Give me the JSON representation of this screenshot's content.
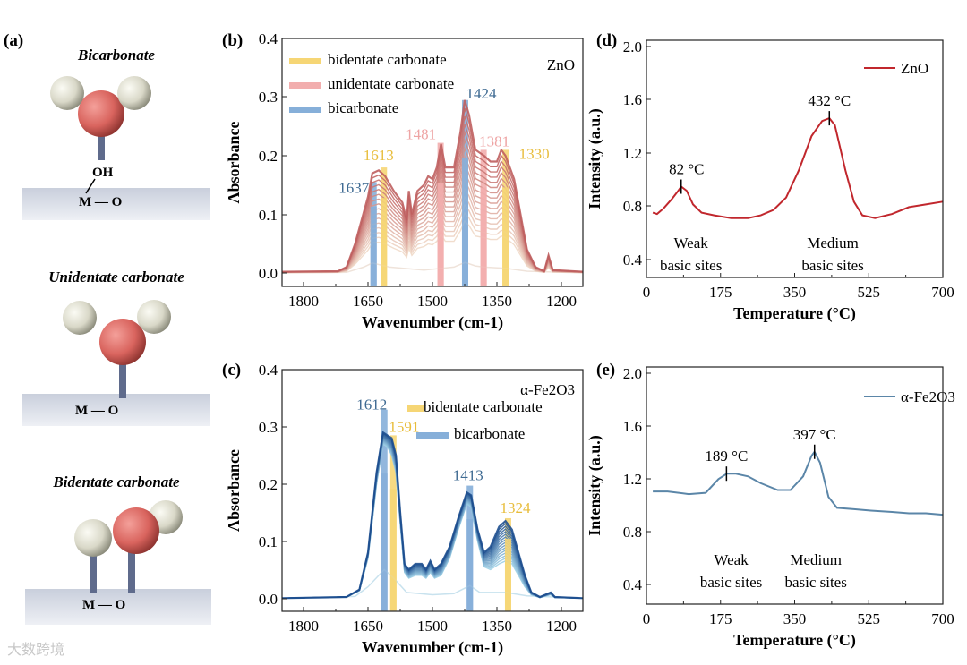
{
  "panel_labels": [
    "(a)",
    "(b)",
    "(c)",
    "(d)",
    "(e)"
  ],
  "molecules": {
    "titles": [
      "Bicarbonate",
      "Unidentate carbonate",
      "Bidentate carbonate"
    ],
    "oh_label": "OH",
    "surface_label": "M — O",
    "M": "M",
    "O": "O"
  },
  "watermark": "大数跨境",
  "colors": {
    "bidentate": "#f6d675",
    "unidentate": "#f2aeae",
    "bicarbonate": "#86afd9",
    "zno_dark": "#bf5f5f",
    "zno_light": "#f0d9c8",
    "fe_dark": "#1e4f8f",
    "fe_light": "#9fd0e6",
    "tpd_zno": "#c1272d",
    "tpd_fe": "#5b86a8"
  },
  "chart_data": [
    {
      "id": "b",
      "type": "line",
      "title": "ZnO",
      "xlabel": "Wavenumber (cm-1)",
      "ylabel": "Absorbance",
      "xlim": [
        1850,
        1150
      ],
      "ylim": [
        -0.023,
        0.4
      ],
      "xticks": [
        "1800",
        "1650",
        "1500",
        "1350",
        "1200"
      ],
      "yticks": [
        "0.0",
        "0.1",
        "0.2",
        "0.3",
        "0.4"
      ],
      "legend": [
        {
          "label": "bidentate carbonate",
          "type": "bidentate"
        },
        {
          "label": "unidentate carbonate",
          "type": "unidentate"
        },
        {
          "label": "bicarbonate",
          "type": "bicarbonate"
        }
      ],
      "n_curves": 16,
      "max_spectrum": [
        [
          1850,
          0.002
        ],
        [
          1720,
          0.003
        ],
        [
          1700,
          0.01
        ],
        [
          1680,
          0.05
        ],
        [
          1665,
          0.09
        ],
        [
          1650,
          0.13
        ],
        [
          1640,
          0.17
        ],
        [
          1625,
          0.175
        ],
        [
          1610,
          0.165
        ],
        [
          1590,
          0.14
        ],
        [
          1570,
          0.12
        ],
        [
          1560,
          0.09
        ],
        [
          1555,
          0.14
        ],
        [
          1548,
          0.1
        ],
        [
          1535,
          0.14
        ],
        [
          1520,
          0.15
        ],
        [
          1510,
          0.165
        ],
        [
          1500,
          0.16
        ],
        [
          1490,
          0.18
        ],
        [
          1480,
          0.22
        ],
        [
          1470,
          0.18
        ],
        [
          1450,
          0.18
        ],
        [
          1435,
          0.24
        ],
        [
          1425,
          0.295
        ],
        [
          1415,
          0.27
        ],
        [
          1400,
          0.21
        ],
        [
          1380,
          0.2
        ],
        [
          1365,
          0.19
        ],
        [
          1350,
          0.19
        ],
        [
          1340,
          0.21
        ],
        [
          1330,
          0.2
        ],
        [
          1310,
          0.16
        ],
        [
          1295,
          0.1
        ],
        [
          1280,
          0.04
        ],
        [
          1260,
          0.01
        ],
        [
          1240,
          0.003
        ],
        [
          1230,
          0.03
        ],
        [
          1220,
          0.005
        ],
        [
          1150,
          0.002
        ]
      ],
      "min_scale": 0.3,
      "baseline": [
        [
          1850,
          0.0
        ],
        [
          1700,
          0.001
        ],
        [
          1660,
          0.01
        ],
        [
          1640,
          0.017
        ],
        [
          1600,
          0.01
        ],
        [
          1520,
          0.005
        ],
        [
          1450,
          0.01
        ],
        [
          1424,
          0.018
        ],
        [
          1400,
          0.012
        ],
        [
          1380,
          0.01
        ],
        [
          1330,
          0.008
        ],
        [
          1280,
          0.003
        ],
        [
          1150,
          0.0
        ]
      ],
      "bands": [
        {
          "x": 1637,
          "y": 0.155,
          "type": "bicarbonate",
          "label": "1637"
        },
        {
          "x": 1613,
          "y": 0.18,
          "type": "bidentate",
          "label": "1613"
        },
        {
          "x": 1481,
          "y": 0.222,
          "type": "unidentate",
          "label": "1481"
        },
        {
          "x": 1424,
          "y": 0.295,
          "type": "bicarbonate",
          "label": "1424"
        },
        {
          "x": 1381,
          "y": 0.21,
          "type": "unidentate",
          "label": "1381"
        },
        {
          "x": 1330,
          "y": 0.21,
          "type": "bidentate",
          "label": "1330"
        }
      ]
    },
    {
      "id": "c",
      "type": "line",
      "title": "α-Fe2O3",
      "xlabel": "Wavenumber (cm-1)",
      "ylabel": "Absorbance",
      "xlim": [
        1850,
        1150
      ],
      "ylim": [
        -0.023,
        0.4
      ],
      "xticks": [
        "1800",
        "1650",
        "1500",
        "1350",
        "1200"
      ],
      "yticks": [
        "0.0",
        "0.1",
        "0.2",
        "0.3",
        "0.4"
      ],
      "legend": [
        {
          "label": "bidentate carbonate",
          "type": "bidentate"
        },
        {
          "label": "bicarbonate",
          "type": "bicarbonate"
        }
      ],
      "n_curves": 16,
      "max_spectrum": [
        [
          1850,
          0
        ],
        [
          1700,
          0.002
        ],
        [
          1670,
          0.015
        ],
        [
          1650,
          0.08
        ],
        [
          1630,
          0.22
        ],
        [
          1615,
          0.29
        ],
        [
          1605,
          0.285
        ],
        [
          1595,
          0.28
        ],
        [
          1585,
          0.25
        ],
        [
          1575,
          0.15
        ],
        [
          1565,
          0.06
        ],
        [
          1555,
          0.05
        ],
        [
          1540,
          0.06
        ],
        [
          1525,
          0.06
        ],
        [
          1515,
          0.05
        ],
        [
          1505,
          0.065
        ],
        [
          1495,
          0.05
        ],
        [
          1480,
          0.06
        ],
        [
          1460,
          0.09
        ],
        [
          1440,
          0.14
        ],
        [
          1420,
          0.185
        ],
        [
          1410,
          0.18
        ],
        [
          1395,
          0.12
        ],
        [
          1380,
          0.08
        ],
        [
          1365,
          0.09
        ],
        [
          1345,
          0.125
        ],
        [
          1330,
          0.135
        ],
        [
          1315,
          0.12
        ],
        [
          1300,
          0.08
        ],
        [
          1285,
          0.04
        ],
        [
          1270,
          0.01
        ],
        [
          1250,
          0.002
        ],
        [
          1225,
          0.01
        ],
        [
          1215,
          0.002
        ],
        [
          1150,
          0
        ]
      ],
      "min_spectrum": [
        [
          1850,
          0
        ],
        [
          1700,
          0.002
        ],
        [
          1670,
          0.013
        ],
        [
          1650,
          0.07
        ],
        [
          1630,
          0.2
        ],
        [
          1615,
          0.27
        ],
        [
          1605,
          0.265
        ],
        [
          1595,
          0.25
        ],
        [
          1585,
          0.22
        ],
        [
          1575,
          0.13
        ],
        [
          1565,
          0.045
        ],
        [
          1555,
          0.035
        ],
        [
          1540,
          0.04
        ],
        [
          1525,
          0.04
        ],
        [
          1515,
          0.035
        ],
        [
          1505,
          0.045
        ],
        [
          1495,
          0.035
        ],
        [
          1480,
          0.04
        ],
        [
          1460,
          0.07
        ],
        [
          1440,
          0.12
        ],
        [
          1420,
          0.165
        ],
        [
          1410,
          0.16
        ],
        [
          1395,
          0.1
        ],
        [
          1380,
          0.055
        ],
        [
          1365,
          0.05
        ],
        [
          1345,
          0.06
        ],
        [
          1330,
          0.065
        ],
        [
          1315,
          0.06
        ],
        [
          1300,
          0.04
        ],
        [
          1285,
          0.02
        ],
        [
          1270,
          0.006
        ],
        [
          1250,
          0.001
        ],
        [
          1225,
          0.006
        ],
        [
          1215,
          0.001
        ],
        [
          1150,
          0
        ]
      ],
      "baseline": [
        [
          1850,
          0
        ],
        [
          1680,
          0.003
        ],
        [
          1650,
          0.02
        ],
        [
          1612,
          0.05
        ],
        [
          1590,
          0.035
        ],
        [
          1560,
          0.01
        ],
        [
          1500,
          0.006
        ],
        [
          1450,
          0.008
        ],
        [
          1413,
          0.022
        ],
        [
          1390,
          0.01
        ],
        [
          1330,
          0.01
        ],
        [
          1280,
          0.004
        ],
        [
          1150,
          0
        ]
      ],
      "bands": [
        {
          "x": 1612,
          "y": 0.33,
          "type": "bicarbonate",
          "label": "1612"
        },
        {
          "x": 1591,
          "y": 0.285,
          "type": "bidentate",
          "label": "1591"
        },
        {
          "x": 1413,
          "y": 0.197,
          "type": "bicarbonate",
          "label": "1413"
        },
        {
          "x": 1324,
          "y": 0.14,
          "type": "bidentate",
          "label": "1324"
        }
      ]
    },
    {
      "id": "d",
      "type": "line",
      "xlabel": "Temperature (°C)",
      "ylabel": "Intensity (a.u.)",
      "xlim": [
        0,
        700
      ],
      "ylim": [
        0.266,
        2.0
      ],
      "xticks": [
        "0",
        "175",
        "350",
        "525",
        "700"
      ],
      "yticks": [
        "0.4",
        "0.8",
        "1.2",
        "1.6",
        "2.0"
      ],
      "legend": [
        {
          "label": "ZnO"
        }
      ],
      "series": [
        [
          15,
          0.74
        ],
        [
          25,
          0.73
        ],
        [
          40,
          0.77
        ],
        [
          60,
          0.84
        ],
        [
          75,
          0.9
        ],
        [
          82,
          0.93
        ],
        [
          95,
          0.9
        ],
        [
          110,
          0.8
        ],
        [
          130,
          0.74
        ],
        [
          160,
          0.72
        ],
        [
          200,
          0.7
        ],
        [
          240,
          0.7
        ],
        [
          270,
          0.72
        ],
        [
          300,
          0.76
        ],
        [
          330,
          0.85
        ],
        [
          360,
          1.05
        ],
        [
          390,
          1.3
        ],
        [
          415,
          1.41
        ],
        [
          432,
          1.43
        ],
        [
          445,
          1.38
        ],
        [
          470,
          1.05
        ],
        [
          490,
          0.82
        ],
        [
          510,
          0.72
        ],
        [
          540,
          0.7
        ],
        [
          580,
          0.73
        ],
        [
          620,
          0.78
        ],
        [
          660,
          0.8
        ],
        [
          700,
          0.82
        ]
      ],
      "peaks": [
        {
          "x": 82,
          "y": 0.93,
          "label": "82 °C"
        },
        {
          "x": 432,
          "y": 1.43,
          "label": "432 °C"
        }
      ],
      "annotations": [
        {
          "x": 105,
          "lines": [
            "Weak",
            "basic sites"
          ]
        },
        {
          "x": 440,
          "lines": [
            "Medium",
            "basic sites"
          ]
        }
      ]
    },
    {
      "id": "e",
      "type": "line",
      "xlabel": "Temperature (°C)",
      "ylabel": "Intensity (a.u.)",
      "xlim": [
        0,
        700
      ],
      "ylim": [
        0.266,
        2.0
      ],
      "xticks": [
        "0",
        "175",
        "350",
        "525",
        "700"
      ],
      "yticks": [
        "0.4",
        "0.8",
        "1.2",
        "1.6",
        "2.0"
      ],
      "legend": [
        {
          "label": "α-Fe2O3"
        }
      ],
      "series": [
        [
          15,
          1.09
        ],
        [
          50,
          1.09
        ],
        [
          100,
          1.07
        ],
        [
          140,
          1.08
        ],
        [
          170,
          1.18
        ],
        [
          190,
          1.22
        ],
        [
          210,
          1.22
        ],
        [
          240,
          1.2
        ],
        [
          270,
          1.15
        ],
        [
          310,
          1.1
        ],
        [
          340,
          1.1
        ],
        [
          370,
          1.2
        ],
        [
          390,
          1.35
        ],
        [
          397,
          1.38
        ],
        [
          410,
          1.3
        ],
        [
          430,
          1.05
        ],
        [
          450,
          0.97
        ],
        [
          490,
          0.96
        ],
        [
          530,
          0.95
        ],
        [
          580,
          0.94
        ],
        [
          620,
          0.93
        ],
        [
          660,
          0.93
        ],
        [
          700,
          0.92
        ]
      ],
      "peaks": [
        {
          "x": 189,
          "y": 1.22,
          "label": "189 °C"
        },
        {
          "x": 397,
          "y": 1.38,
          "label": "397 °C"
        }
      ],
      "annotations": [
        {
          "x": 200,
          "lines": [
            "Weak",
            "basic sites"
          ]
        },
        {
          "x": 400,
          "lines": [
            "Medium",
            "basic sites"
          ]
        }
      ]
    }
  ]
}
